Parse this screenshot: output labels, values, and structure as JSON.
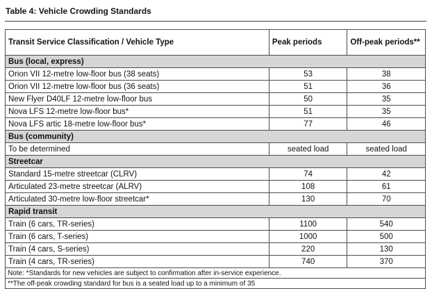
{
  "title": "Table 4: Vehicle Crowding Standards",
  "table": {
    "headers": [
      "Transit Service Classification / Vehicle Type",
      "Peak periods",
      "Off-peak periods**"
    ],
    "sections": [
      {
        "label": "Bus (local, express)",
        "rows": [
          {
            "name": "Orion VII 12-metre low-floor bus (38 seats)",
            "peak": "53",
            "offpeak": "38"
          },
          {
            "name": "Orion VII 12-metre low-floor bus (36 seats)",
            "peak": "51",
            "offpeak": "36"
          },
          {
            "name": "New Flyer D40LF 12-metre low-floor bus",
            "peak": "50",
            "offpeak": "35"
          },
          {
            "name": "Nova LFS 12-metre low-floor bus*",
            "peak": "51",
            "offpeak": "35"
          },
          {
            "name": "Nova LFS artic 18-metre low-floor bus*",
            "peak": "77",
            "offpeak": "46"
          }
        ]
      },
      {
        "label": "Bus (community)",
        "rows": [
          {
            "name": "To be determined",
            "peak": "seated load",
            "offpeak": "seated load"
          }
        ]
      },
      {
        "label": "Streetcar",
        "rows": [
          {
            "name": "Standard 15-metre streetcar (CLRV)",
            "peak": "74",
            "offpeak": "42"
          },
          {
            "name": "Articulated 23-metre streetcar (ALRV)",
            "peak": "108",
            "offpeak": "61"
          },
          {
            "name": "Articulated 30-metre low-floor streetcar*",
            "peak": "130",
            "offpeak": "70"
          }
        ]
      },
      {
        "label": "Rapid transit",
        "rows": [
          {
            "name": "Train (6 cars, TR-series)",
            "peak": "1100",
            "offpeak": "540"
          },
          {
            "name": "Train (6 cars, T-series)",
            "peak": "1000",
            "offpeak": "500"
          },
          {
            "name": "Train (4 cars, S-series)",
            "peak": "220",
            "offpeak": "130"
          },
          {
            "name": "Train (4 cars, TR-series)",
            "peak": "740",
            "offpeak": "370"
          }
        ]
      }
    ]
  },
  "notes": [
    "Note: *Standards for new vehicles are subject to confirmation after in-service experience.",
    "**The off-peak crowding standard for bus is a seated load up to a minimum of 35"
  ]
}
